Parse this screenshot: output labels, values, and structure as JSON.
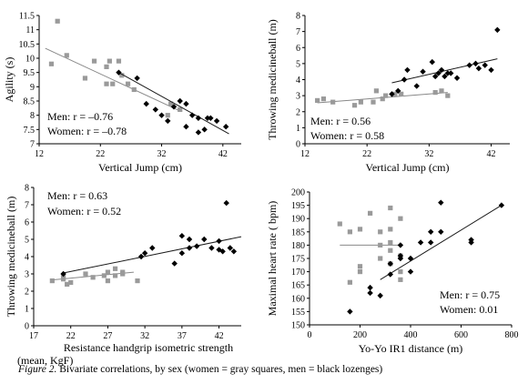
{
  "caption": {
    "label": "Figure 2.",
    "text": " Bivariate correlations, by sex (women = gray squares, men = black lozenges)"
  },
  "colors": {
    "women": "#9a9a9a",
    "men": "#000000",
    "axis": "#000000"
  },
  "chart_data": [
    {
      "type": "scatter",
      "xlabel": "Vertical Jump (cm)",
      "ylabel": "Agility (s)",
      "xlim": [
        12,
        45
      ],
      "ylim": [
        7,
        11.5
      ],
      "xticks": [
        12,
        22,
        32,
        42
      ],
      "yticks": [
        7,
        7.5,
        8,
        8.5,
        9,
        9.5,
        10,
        10.5,
        11,
        11.5
      ],
      "grid": false,
      "legend": "bottom-left",
      "annotations": [
        "Men: r = –0.76",
        "Women: r = –0.78"
      ],
      "series": [
        {
          "group": "women",
          "points": [
            [
              14,
              9.8
            ],
            [
              15,
              11.3
            ],
            [
              16.5,
              10.1
            ],
            [
              19.5,
              9.3
            ],
            [
              21,
              9.9
            ],
            [
              23,
              9.7
            ],
            [
              23.5,
              9.9
            ],
            [
              23,
              9.1
            ],
            [
              24,
              9.1
            ],
            [
              25,
              9.9
            ],
            [
              25.5,
              9.4
            ],
            [
              26.5,
              9.1
            ],
            [
              27.5,
              8.9
            ],
            [
              33,
              8.0
            ],
            [
              33.5,
              8.4
            ],
            [
              35,
              8.2
            ]
          ],
          "fit": [
            [
              13,
              10.35
            ],
            [
              35,
              8.15
            ]
          ]
        },
        {
          "group": "men",
          "points": [
            [
              25,
              9.5
            ],
            [
              28,
              9.3
            ],
            [
              29.5,
              8.4
            ],
            [
              31,
              8.2
            ],
            [
              32,
              8.0
            ],
            [
              33,
              7.8
            ],
            [
              34,
              8.3
            ],
            [
              35,
              8.5
            ],
            [
              36,
              8.4
            ],
            [
              36,
              7.6
            ],
            [
              37,
              8.0
            ],
            [
              38,
              7.9
            ],
            [
              38,
              7.4
            ],
            [
              39,
              7.5
            ],
            [
              39.5,
              7.9
            ],
            [
              40,
              7.9
            ],
            [
              41,
              7.8
            ],
            [
              42.5,
              7.6
            ]
          ],
          "fit": [
            [
              25,
              9.5
            ],
            [
              43,
              7.35
            ]
          ]
        }
      ]
    },
    {
      "type": "scatter",
      "xlabel": "Vertical Jump (cm)",
      "ylabel": "Throwing medicineball (m)",
      "xlim": [
        12,
        45
      ],
      "ylim": [
        0,
        8
      ],
      "xticks": [
        12,
        22,
        32,
        42
      ],
      "yticks": [
        0,
        1,
        2,
        3,
        4,
        5,
        6,
        7,
        8
      ],
      "grid": false,
      "legend": "bottom-left",
      "annotations": [
        "Men: r = 0.56",
        "Women: r = 0.58"
      ],
      "series": [
        {
          "group": "women",
          "points": [
            [
              14,
              2.7
            ],
            [
              15,
              2.8
            ],
            [
              16.5,
              2.6
            ],
            [
              20,
              2.4
            ],
            [
              21,
              2.6
            ],
            [
              23,
              2.6
            ],
            [
              23.5,
              3.3
            ],
            [
              24.5,
              2.8
            ],
            [
              25,
              3.0
            ],
            [
              26.5,
              3.1
            ],
            [
              27.5,
              3.1
            ],
            [
              33,
              3.2
            ],
            [
              34,
              3.3
            ],
            [
              35,
              3.0
            ]
          ],
          "fit": [
            [
              14,
              2.55
            ],
            [
              35,
              3.2
            ]
          ]
        },
        {
          "group": "men",
          "points": [
            [
              26,
              3.1
            ],
            [
              27,
              3.3
            ],
            [
              28,
              4.0
            ],
            [
              28.5,
              4.6
            ],
            [
              30,
              3.6
            ],
            [
              31,
              4.5
            ],
            [
              32.5,
              5.1
            ],
            [
              33,
              4.2
            ],
            [
              33.5,
              4.4
            ],
            [
              34,
              4.6
            ],
            [
              34.5,
              4.2
            ],
            [
              35,
              4.4
            ],
            [
              35.5,
              4.4
            ],
            [
              36.5,
              4.1
            ],
            [
              38.5,
              4.9
            ],
            [
              39.5,
              5.0
            ],
            [
              40,
              4.7
            ],
            [
              41,
              4.9
            ],
            [
              42,
              4.6
            ],
            [
              43,
              7.1
            ]
          ],
          "fit": [
            [
              26,
              3.8
            ],
            [
              43,
              5.3
            ]
          ]
        }
      ]
    },
    {
      "type": "scatter",
      "xlabel": "Resistance handgrip isometric strength (mean, KgF)",
      "ylabel": "Throwing medicineball (m)",
      "xlim": [
        17,
        45
      ],
      "ylim": [
        0,
        8
      ],
      "xticks": [
        17,
        22,
        27,
        32,
        37,
        42
      ],
      "yticks": [
        0,
        1,
        2,
        3,
        4,
        5,
        6,
        7,
        8
      ],
      "grid": false,
      "legend": "top-left",
      "annotations": [
        "Men: r = 0.63",
        "Women: r = 0.52"
      ],
      "series": [
        {
          "group": "women",
          "points": [
            [
              19.5,
              2.6
            ],
            [
              21,
              2.7
            ],
            [
              21,
              2.8
            ],
            [
              21.5,
              2.4
            ],
            [
              22,
              2.5
            ],
            [
              24,
              3.0
            ],
            [
              25,
              2.8
            ],
            [
              26.5,
              2.9
            ],
            [
              27,
              2.6
            ],
            [
              27,
              3.1
            ],
            [
              28,
              2.9
            ],
            [
              28,
              3.3
            ],
            [
              29,
              3.0
            ],
            [
              29,
              3.1
            ],
            [
              31,
              2.6
            ]
          ],
          "fit": [
            [
              19.5,
              2.65
            ],
            [
              30.5,
              3.1
            ]
          ]
        },
        {
          "group": "men",
          "points": [
            [
              21,
              3.0
            ],
            [
              31.5,
              4.0
            ],
            [
              32,
              4.2
            ],
            [
              33,
              4.5
            ],
            [
              36,
              3.6
            ],
            [
              37,
              4.2
            ],
            [
              37,
              5.2
            ],
            [
              38,
              4.5
            ],
            [
              38,
              5.0
            ],
            [
              39,
              4.6
            ],
            [
              40,
              5.0
            ],
            [
              41,
              4.5
            ],
            [
              42,
              4.9
            ],
            [
              42,
              4.4
            ],
            [
              42.5,
              4.3
            ],
            [
              43,
              7.1
            ],
            [
              43.5,
              4.5
            ],
            [
              44,
              4.3
            ]
          ],
          "fit": [
            [
              21,
              3.05
            ],
            [
              45,
              5.15
            ]
          ]
        }
      ]
    },
    {
      "type": "scatter",
      "xlabel": "Yo-Yo IR1 distance (m)",
      "ylabel": "Maximal heart rate ( bpm)",
      "xlim": [
        0,
        800
      ],
      "ylim": [
        150,
        200
      ],
      "xticks": [
        0,
        200,
        400,
        600,
        800
      ],
      "yticks": [
        150,
        155,
        160,
        165,
        170,
        175,
        180,
        185,
        190,
        195,
        200
      ],
      "grid": false,
      "legend": "bottom-right",
      "annotations": [
        "Men: r = 0.75",
        "Women: 0.01"
      ],
      "series": [
        {
          "group": "women",
          "points": [
            [
              120,
              188
            ],
            [
              160,
              185
            ],
            [
              160,
              166
            ],
            [
              200,
              186
            ],
            [
              200,
              172
            ],
            [
              200,
              170
            ],
            [
              240,
              192
            ],
            [
              280,
              185
            ],
            [
              280,
              180
            ],
            [
              280,
              175
            ],
            [
              320,
              194
            ],
            [
              320,
              186
            ],
            [
              320,
              181
            ],
            [
              320,
              178
            ],
            [
              320,
              173
            ],
            [
              360,
              190
            ],
            [
              360,
              176
            ],
            [
              360,
              170
            ],
            [
              360,
              167
            ]
          ],
          "fit": [
            [
              120,
              180
            ],
            [
              360,
              180
            ]
          ]
        },
        {
          "group": "men",
          "points": [
            [
              160,
              155
            ],
            [
              240,
              164
            ],
            [
              240,
              162
            ],
            [
              280,
              161
            ],
            [
              320,
              173
            ],
            [
              320,
              169
            ],
            [
              360,
              180
            ],
            [
              360,
              176
            ],
            [
              360,
              175
            ],
            [
              400,
              175
            ],
            [
              400,
              170
            ],
            [
              440,
              181
            ],
            [
              480,
              185
            ],
            [
              480,
              181
            ],
            [
              520,
              196
            ],
            [
              520,
              185
            ],
            [
              640,
              182
            ],
            [
              640,
              181
            ],
            [
              760,
              195
            ]
          ],
          "fit": [
            [
              280,
              167
            ],
            [
              760,
              195
            ]
          ]
        }
      ]
    }
  ]
}
